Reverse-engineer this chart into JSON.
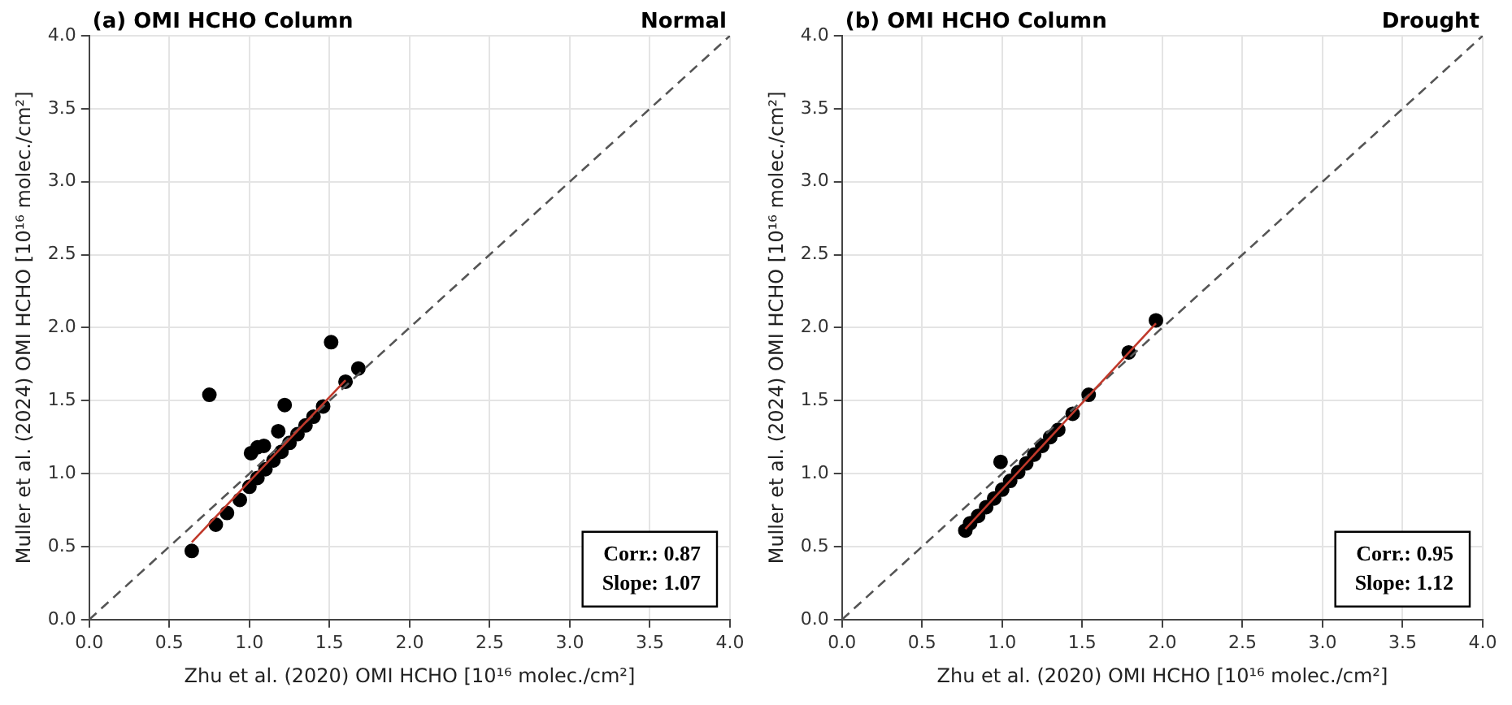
{
  "chart_data": [
    {
      "type": "scatter",
      "title": "(a) OMI HCHO Column",
      "subtitle": "Normal",
      "xlabel": "Zhu et al. (2020) OMI HCHO [10¹⁶ molec./cm²]",
      "ylabel": "Muller et al. (2024) OMI HCHO [10¹⁶ molec./cm²]",
      "xlim": [
        0,
        4
      ],
      "ylim": [
        0,
        4
      ],
      "xticks": [
        {
          "value": 0,
          "label": "0.0"
        },
        {
          "value": 0.5,
          "label": "0.5"
        },
        {
          "value": 1,
          "label": "1.0"
        },
        {
          "value": 1.5,
          "label": "1.5"
        },
        {
          "value": 2,
          "label": "2.0"
        },
        {
          "value": 2.5,
          "label": "2.5"
        },
        {
          "value": 3,
          "label": "3.0"
        },
        {
          "value": 3.5,
          "label": "3.5"
        },
        {
          "value": 4,
          "label": "4.0"
        }
      ],
      "yticks": [
        {
          "value": 0,
          "label": "0.0"
        },
        {
          "value": 0.5,
          "label": "0.5"
        },
        {
          "value": 1,
          "label": "1.0"
        },
        {
          "value": 1.5,
          "label": "1.5"
        },
        {
          "value": 2,
          "label": "2.0"
        },
        {
          "value": 2.5,
          "label": "2.5"
        },
        {
          "value": 3,
          "label": "3.0"
        },
        {
          "value": 3.5,
          "label": "3.5"
        },
        {
          "value": 4,
          "label": "4.0"
        }
      ],
      "grid": true,
      "annotations": [
        "Corr.: 0.87",
        "Slope: 1.07"
      ],
      "series": [
        {
          "marker": "circle",
          "color": "#000000",
          "x": [
            0.64,
            0.79,
            0.86,
            0.94,
            1.0,
            1.05,
            1.1,
            1.15,
            1.2,
            1.25,
            1.3,
            1.35,
            1.4,
            1.46,
            1.6,
            1.68,
            1.51,
            0.75,
            1.22,
            1.18,
            1.01,
            1.05,
            1.09
          ],
          "values": [
            0.47,
            0.65,
            0.73,
            0.82,
            0.91,
            0.97,
            1.03,
            1.09,
            1.15,
            1.21,
            1.27,
            1.33,
            1.39,
            1.46,
            1.63,
            1.72,
            1.9,
            1.54,
            1.47,
            1.29,
            1.14,
            1.18,
            1.19
          ]
        },
        {
          "type": "line",
          "marker": "none",
          "color": "#c0392b",
          "x": [
            0.64,
            1.6
          ],
          "values": [
            0.53,
            1.64
          ]
        },
        {
          "type": "line",
          "marker": "none",
          "color": "#555555",
          "line_style": "dashed",
          "x": [
            0,
            4
          ],
          "values": [
            0,
            4
          ]
        }
      ]
    },
    {
      "type": "scatter",
      "title": "(b) OMI HCHO Column",
      "subtitle": "Drought",
      "xlabel": "Zhu et al. (2020) OMI HCHO [10¹⁶ molec./cm²]",
      "ylabel": "Muller et al. (2024) OMI HCHO [10¹⁶ molec./cm²]",
      "xlim": [
        0,
        4
      ],
      "ylim": [
        0,
        4
      ],
      "xticks": [
        {
          "value": 0,
          "label": "0.0"
        },
        {
          "value": 0.5,
          "label": "0.5"
        },
        {
          "value": 1,
          "label": "1.0"
        },
        {
          "value": 1.5,
          "label": "1.5"
        },
        {
          "value": 2,
          "label": "2.0"
        },
        {
          "value": 2.5,
          "label": "2.5"
        },
        {
          "value": 3,
          "label": "3.0"
        },
        {
          "value": 3.5,
          "label": "3.5"
        },
        {
          "value": 4,
          "label": "4.0"
        }
      ],
      "yticks": [
        {
          "value": 0,
          "label": "0.0"
        },
        {
          "value": 0.5,
          "label": "0.5"
        },
        {
          "value": 1,
          "label": "1.0"
        },
        {
          "value": 1.5,
          "label": "1.5"
        },
        {
          "value": 2,
          "label": "2.0"
        },
        {
          "value": 2.5,
          "label": "2.5"
        },
        {
          "value": 3,
          "label": "3.0"
        },
        {
          "value": 3.5,
          "label": "3.5"
        },
        {
          "value": 4,
          "label": "4.0"
        }
      ],
      "grid": true,
      "annotations": [
        "Corr.: 0.95",
        "Slope: 1.12"
      ],
      "series": [
        {
          "marker": "circle",
          "color": "#000000",
          "x": [
            0.77,
            0.8,
            0.85,
            0.9,
            0.95,
            1.0,
            1.05,
            1.1,
            1.15,
            1.2,
            1.25,
            1.3,
            1.35,
            1.44,
            1.54,
            1.79,
            1.96,
            0.99
          ],
          "values": [
            0.61,
            0.66,
            0.71,
            0.77,
            0.83,
            0.89,
            0.95,
            1.01,
            1.07,
            1.13,
            1.19,
            1.25,
            1.3,
            1.41,
            1.54,
            1.83,
            2.05,
            1.08
          ]
        },
        {
          "type": "line",
          "marker": "none",
          "color": "#c0392b",
          "x": [
            0.77,
            1.96
          ],
          "values": [
            0.62,
            2.03
          ]
        },
        {
          "type": "line",
          "marker": "none",
          "color": "#555555",
          "line_style": "dashed",
          "x": [
            0,
            4
          ],
          "values": [
            0,
            4
          ]
        }
      ]
    }
  ]
}
